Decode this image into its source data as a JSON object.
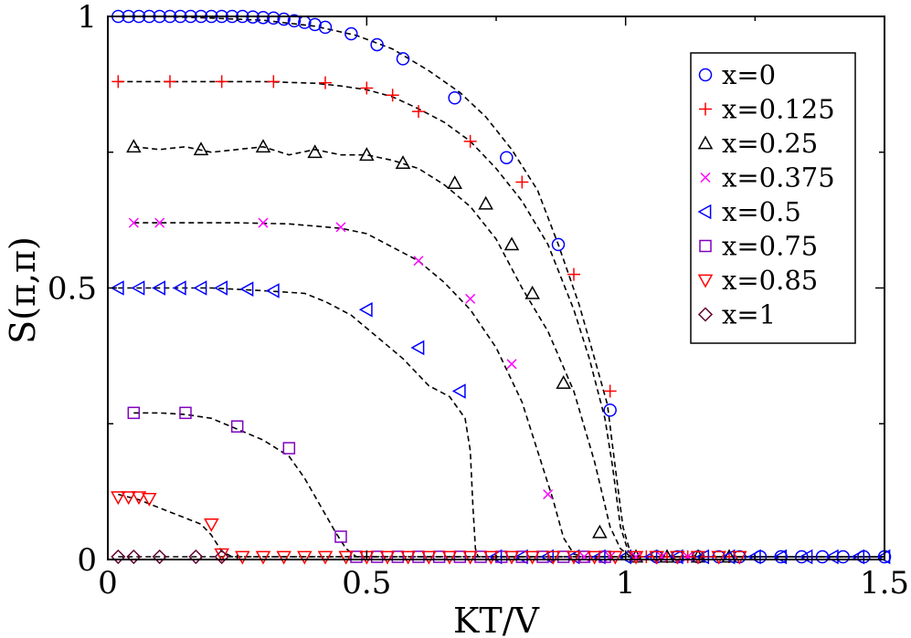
{
  "chart_data": {
    "type": "line",
    "title": "",
    "xlabel": "KT/V",
    "ylabel": "S(π,π)",
    "xlim": [
      0,
      1.5
    ],
    "ylim": [
      0,
      1
    ],
    "xticks": [
      0,
      0.5,
      1,
      1.5
    ],
    "xtick_labels": [
      "0",
      "0.5",
      "1",
      "1.5"
    ],
    "yticks": [
      0,
      0.5,
      1
    ],
    "ytick_labels": [
      "0",
      "0.5",
      "1"
    ],
    "minor_yticks": [
      0.25,
      0.75
    ],
    "grid": false,
    "legend_position": "top-right",
    "series": [
      {
        "name": "x=0",
        "label": "x=0",
        "marker": "circle",
        "color": "#0000ff",
        "line_x": [
          0.02,
          0.1,
          0.2,
          0.3,
          0.4,
          0.48,
          0.55,
          0.62,
          0.68,
          0.73,
          0.78,
          0.83,
          0.87,
          0.91,
          0.94,
          0.965,
          0.98,
          0.995,
          1.01,
          1.02,
          1.5
        ],
        "line_y": [
          1.0,
          1.0,
          0.997,
          0.993,
          0.982,
          0.965,
          0.94,
          0.9,
          0.86,
          0.815,
          0.755,
          0.68,
          0.58,
          0.47,
          0.37,
          0.285,
          0.17,
          0.06,
          0.01,
          0.005,
          0.005
        ],
        "points_x": [
          0.02,
          0.04,
          0.06,
          0.08,
          0.1,
          0.12,
          0.14,
          0.16,
          0.18,
          0.2,
          0.22,
          0.24,
          0.26,
          0.28,
          0.3,
          0.32,
          0.34,
          0.36,
          0.38,
          0.4,
          0.42,
          0.47,
          0.52,
          0.57,
          0.67,
          0.77,
          0.87,
          0.97,
          1.06,
          1.1,
          1.14,
          1.18,
          1.22,
          1.26,
          1.3,
          1.34,
          1.38,
          1.42,
          1.46,
          1.5
        ],
        "points_y": [
          1.0,
          1.0,
          1.0,
          1.0,
          1.0,
          1.0,
          1.0,
          1.0,
          1.0,
          1.0,
          1.0,
          1.0,
          1.0,
          0.999,
          0.998,
          0.997,
          0.995,
          0.992,
          0.989,
          0.985,
          0.98,
          0.968,
          0.948,
          0.922,
          0.85,
          0.74,
          0.58,
          0.275,
          0.005,
          0.005,
          0.005,
          0.005,
          0.005,
          0.005,
          0.005,
          0.005,
          0.005,
          0.005,
          0.005,
          0.005
        ]
      },
      {
        "name": "x=0.125",
        "label": "x=0.125",
        "marker": "plus",
        "color": "#ff0000",
        "line_x": [
          0.02,
          0.1,
          0.2,
          0.3,
          0.4,
          0.45,
          0.5,
          0.55,
          0.6,
          0.65,
          0.7,
          0.75,
          0.8,
          0.85,
          0.9,
          0.93,
          0.96,
          0.975,
          0.99,
          1.005,
          1.015,
          1.5
        ],
        "line_y": [
          0.88,
          0.88,
          0.88,
          0.88,
          0.877,
          0.872,
          0.865,
          0.852,
          0.83,
          0.805,
          0.77,
          0.72,
          0.66,
          0.58,
          0.46,
          0.37,
          0.26,
          0.17,
          0.06,
          0.015,
          0.005,
          0.005
        ],
        "points_x": [
          0.02,
          0.12,
          0.22,
          0.32,
          0.42,
          0.5,
          0.55,
          0.6,
          0.7,
          0.8,
          0.9,
          0.97,
          1.04,
          1.08,
          1.12,
          1.16,
          1.2
        ],
        "points_y": [
          0.88,
          0.88,
          0.88,
          0.88,
          0.878,
          0.868,
          0.855,
          0.825,
          0.77,
          0.695,
          0.525,
          0.31,
          0.005,
          0.005,
          0.005,
          0.005,
          0.005
        ]
      },
      {
        "name": "x=0.25",
        "label": "x=0.25",
        "marker": "triangle-up",
        "color": "#000000",
        "line_x": [
          0.05,
          0.1,
          0.15,
          0.2,
          0.25,
          0.3,
          0.35,
          0.4,
          0.45,
          0.5,
          0.55,
          0.6,
          0.65,
          0.7,
          0.75,
          0.8,
          0.85,
          0.9,
          0.94,
          0.97,
          0.99,
          1.01,
          1.5
        ],
        "line_y": [
          0.76,
          0.755,
          0.76,
          0.75,
          0.755,
          0.76,
          0.745,
          0.755,
          0.745,
          0.745,
          0.735,
          0.72,
          0.69,
          0.65,
          0.59,
          0.5,
          0.42,
          0.31,
          0.18,
          0.06,
          0.02,
          0.005,
          0.005
        ],
        "points_x": [
          0.05,
          0.18,
          0.3,
          0.4,
          0.5,
          0.57,
          0.67,
          0.73,
          0.78,
          0.82,
          0.88,
          0.95,
          1.02,
          1.08,
          1.14,
          1.2
        ],
        "points_y": [
          0.76,
          0.755,
          0.76,
          0.75,
          0.745,
          0.73,
          0.693,
          0.655,
          0.58,
          0.49,
          0.325,
          0.05,
          0.005,
          0.005,
          0.005,
          0.005
        ]
      },
      {
        "name": "x=0.375",
        "label": "x=0.375",
        "marker": "cross",
        "color": "#ff00ff",
        "line_x": [
          0.05,
          0.15,
          0.25,
          0.35,
          0.45,
          0.5,
          0.55,
          0.6,
          0.65,
          0.7,
          0.75,
          0.8,
          0.83,
          0.86,
          0.88,
          0.9,
          0.92,
          1.5
        ],
        "line_y": [
          0.62,
          0.62,
          0.62,
          0.618,
          0.61,
          0.6,
          0.575,
          0.55,
          0.51,
          0.46,
          0.39,
          0.29,
          0.2,
          0.11,
          0.04,
          0.01,
          0.005,
          0.005
        ],
        "points_x": [
          0.05,
          0.1,
          0.3,
          0.45,
          0.6,
          0.7,
          0.78,
          0.85,
          0.92,
          0.97,
          1.02,
          1.07,
          1.12
        ],
        "points_y": [
          0.62,
          0.62,
          0.62,
          0.612,
          0.55,
          0.48,
          0.36,
          0.12,
          0.005,
          0.005,
          0.005,
          0.005,
          0.005
        ]
      },
      {
        "name": "x=0.5",
        "label": "x=0.5",
        "marker": "triangle-left",
        "color": "#0000ff",
        "line_x": [
          0.02,
          0.1,
          0.2,
          0.3,
          0.38,
          0.42,
          0.47,
          0.52,
          0.57,
          0.62,
          0.66,
          0.69,
          0.7,
          0.705,
          0.71,
          0.715,
          1.5
        ],
        "line_y": [
          0.5,
          0.5,
          0.5,
          0.495,
          0.49,
          0.475,
          0.45,
          0.41,
          0.37,
          0.32,
          0.3,
          0.26,
          0.2,
          0.1,
          0.02,
          0.005,
          0.005
        ],
        "points_x": [
          0.02,
          0.06,
          0.1,
          0.14,
          0.18,
          0.22,
          0.27,
          0.32,
          0.5,
          0.6,
          0.68,
          0.75,
          0.8,
          0.85,
          0.9,
          0.95,
          1.0,
          1.05,
          1.1,
          1.15,
          1.2,
          1.25,
          1.3,
          1.35,
          1.4,
          1.45,
          1.5
        ],
        "points_y": [
          0.5,
          0.5,
          0.5,
          0.5,
          0.5,
          0.5,
          0.498,
          0.495,
          0.46,
          0.39,
          0.31,
          0.005,
          0.005,
          0.005,
          0.005,
          0.005,
          0.005,
          0.005,
          0.005,
          0.005,
          0.005,
          0.005,
          0.005,
          0.005,
          0.005,
          0.005,
          0.005
        ]
      },
      {
        "name": "x=0.75",
        "label": "x=0.75",
        "marker": "square",
        "color": "#8000c0",
        "line_x": [
          0.05,
          0.1,
          0.15,
          0.2,
          0.25,
          0.3,
          0.35,
          0.38,
          0.41,
          0.44,
          0.46,
          0.48,
          0.5,
          1.5
        ],
        "line_y": [
          0.27,
          0.27,
          0.267,
          0.26,
          0.24,
          0.22,
          0.19,
          0.15,
          0.1,
          0.05,
          0.02,
          0.005,
          0.005,
          0.005
        ],
        "points_x": [
          0.05,
          0.15,
          0.25,
          0.35,
          0.45,
          0.48,
          0.52,
          0.56,
          0.6,
          0.64,
          0.68,
          0.72,
          0.76,
          0.8,
          0.84,
          0.88,
          0.92,
          0.96
        ],
        "points_y": [
          0.27,
          0.27,
          0.245,
          0.205,
          0.042,
          0.005,
          0.005,
          0.005,
          0.005,
          0.005,
          0.005,
          0.005,
          0.005,
          0.005,
          0.005,
          0.005,
          0.005,
          0.005
        ]
      },
      {
        "name": "x=0.85",
        "label": "x=0.85",
        "marker": "triangle-down",
        "color": "#ff0000",
        "line_x": [
          0.02,
          0.06,
          0.1,
          0.14,
          0.18,
          0.2,
          0.22,
          0.24,
          1.5
        ],
        "line_y": [
          0.12,
          0.11,
          0.095,
          0.08,
          0.065,
          0.045,
          0.015,
          0.005,
          0.005
        ],
        "points_x": [
          0.02,
          0.04,
          0.06,
          0.08,
          0.2,
          0.22,
          0.26,
          0.3,
          0.34,
          0.38,
          0.42,
          0.46,
          0.5,
          0.54,
          0.58,
          0.62,
          0.66,
          0.7,
          0.74,
          0.78,
          0.82,
          0.86,
          0.9,
          0.94,
          0.98,
          1.02,
          1.06,
          1.1,
          1.14,
          1.18,
          1.22
        ],
        "points_y": [
          0.115,
          0.115,
          0.115,
          0.112,
          0.065,
          0.01,
          0.005,
          0.005,
          0.005,
          0.005,
          0.005,
          0.005,
          0.005,
          0.005,
          0.005,
          0.005,
          0.005,
          0.005,
          0.005,
          0.005,
          0.005,
          0.005,
          0.005,
          0.005,
          0.005,
          0.005,
          0.005,
          0.005,
          0.005,
          0.005,
          0.005
        ]
      },
      {
        "name": "x=1",
        "label": "x=1",
        "marker": "diamond",
        "color": "#600030",
        "line_x": [
          0.02,
          0.1,
          0.2,
          0.22,
          1.5
        ],
        "line_y": [
          0.005,
          0.005,
          0.005,
          0.005,
          0.005
        ],
        "points_x": [
          0.02,
          0.05,
          0.1,
          0.17,
          0.22
        ],
        "points_y": [
          0.005,
          0.005,
          0.005,
          0.005,
          0.005
        ]
      }
    ]
  }
}
